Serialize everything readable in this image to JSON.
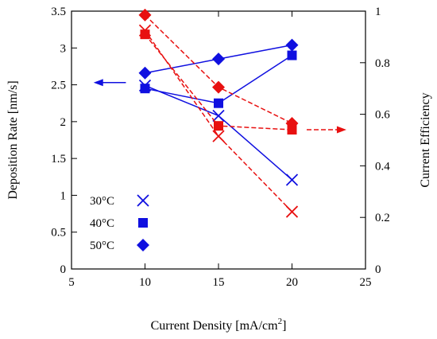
{
  "chart_data": {
    "type": "scatter",
    "xlabel": "Current Density [mA/cm",
    "xlabel_sup": "2",
    "xlabel_suffix": "]",
    "ylabel_left": "Deposition Rate [nm/s]",
    "ylabel_right": "Current Efficiency",
    "xlim": [
      5,
      25
    ],
    "ylim_left": [
      0,
      3.5
    ],
    "ylim_right": [
      0,
      1
    ],
    "x_ticks": [
      "5",
      "10",
      "15",
      "20",
      "25"
    ],
    "y_left_ticks": [
      "0",
      "0.5",
      "1",
      "1.5",
      "2",
      "2.5",
      "3",
      "3.5"
    ],
    "y_right_ticks": [
      "0",
      "0.2",
      "0.4",
      "0.6",
      "0.8",
      "1"
    ],
    "grid": false,
    "legend_placement": "bottom-left",
    "legend": [
      {
        "label": "30°C",
        "marker": "x"
      },
      {
        "label": "40°C",
        "marker": "square"
      },
      {
        "label": "50°C",
        "marker": "diamond"
      }
    ],
    "series": [
      {
        "temp": "30°C",
        "marker": "x",
        "axis": "left",
        "color": "#1010e0",
        "line": "solid",
        "x": [
          10,
          15,
          20
        ],
        "y": [
          2.49,
          2.08,
          1.21
        ]
      },
      {
        "temp": "40°C",
        "marker": "square",
        "axis": "left",
        "color": "#1010e0",
        "line": "solid",
        "x": [
          10,
          15,
          20
        ],
        "y": [
          2.45,
          2.25,
          2.9
        ]
      },
      {
        "temp": "50°C",
        "marker": "diamond",
        "axis": "left",
        "color": "#1010e0",
        "line": "solid",
        "x": [
          10,
          15,
          20
        ],
        "y": [
          2.66,
          2.85,
          3.04
        ]
      },
      {
        "temp": "30°C",
        "marker": "x",
        "axis": "right",
        "color": "#e81010",
        "line": "dashed",
        "x": [
          10,
          15,
          20
        ],
        "y": [
          0.925,
          0.515,
          0.222
        ]
      },
      {
        "temp": "40°C",
        "marker": "square",
        "axis": "right",
        "color": "#e81010",
        "line": "dashed",
        "x": [
          10,
          15,
          20
        ],
        "y": [
          0.91,
          0.555,
          0.54
        ]
      },
      {
        "temp": "50°C",
        "marker": "diamond",
        "axis": "right",
        "color": "#e81010",
        "line": "dashed",
        "x": [
          10,
          15,
          20
        ],
        "y": [
          0.985,
          0.705,
          0.565
        ]
      }
    ],
    "annotations": [
      {
        "type": "arrow",
        "direction": "left",
        "color": "#1010e0",
        "line": "solid",
        "axis": "left",
        "x_from": 8.7,
        "x_to": 6.5,
        "y": 2.53
      },
      {
        "type": "arrow",
        "direction": "right",
        "color": "#e81010",
        "line": "dashed",
        "axis": "right",
        "x_from": 21.0,
        "x_to": 23.7,
        "y": 0.54
      }
    ]
  }
}
